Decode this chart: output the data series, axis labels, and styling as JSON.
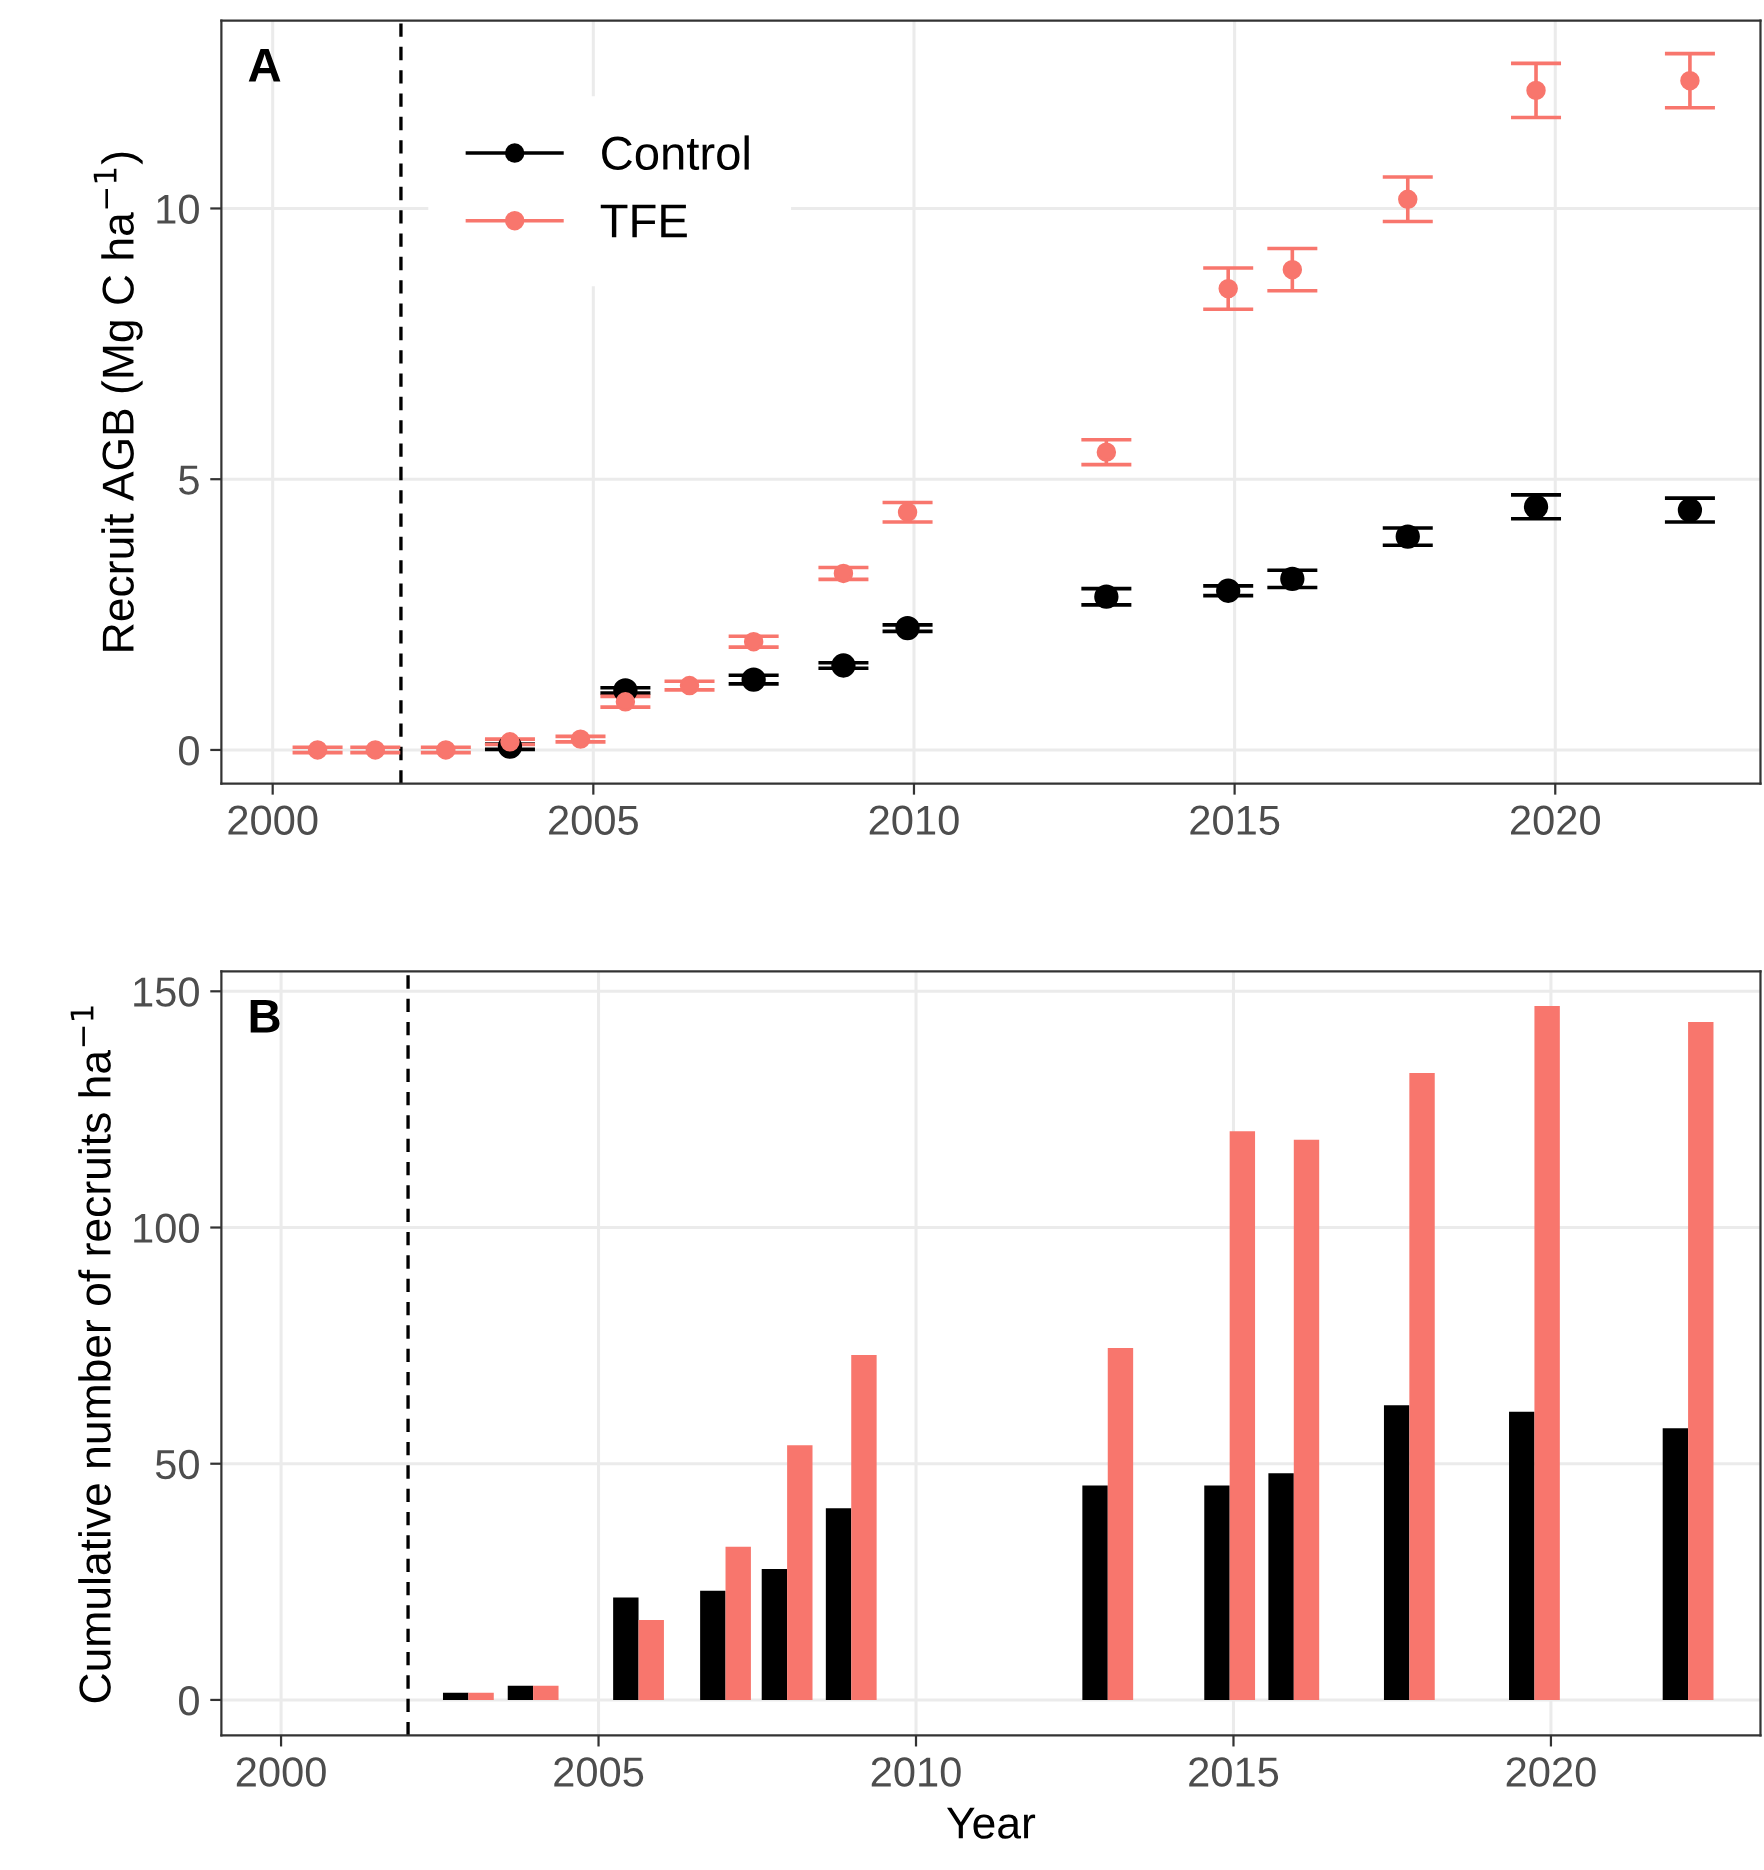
{
  "chart_data": [
    {
      "type": "scatter",
      "title": "A",
      "ylabel": "Recruit AGB (Mg C ha$^{−1}$)",
      "xlim": [
        1999.2,
        2023.2
      ],
      "xticks": [
        2000,
        2005,
        2010,
        2015,
        2020
      ],
      "ylim": [
        -0.62,
        13.47
      ],
      "yticks": [
        0,
        5,
        10
      ],
      "grid": true,
      "legend": "top left",
      "marker": "circle",
      "ref_lines": [
        {
          "axis": "x",
          "value": 2002,
          "line_style": "dashed",
          "color": "#000000"
        }
      ],
      "series": [
        {
          "name": "Control",
          "color": "#000000",
          "x": [
            2003.7,
            2005.5,
            2007.5,
            2008.9,
            2009.9,
            2013.0,
            2014.9,
            2015.9,
            2017.7,
            2019.7,
            2022.1
          ],
          "values": [
            0.06,
            1.1,
            1.3,
            1.56,
            2.25,
            2.83,
            2.94,
            3.16,
            3.94,
            4.49,
            4.43
          ],
          "errors": [
            0.05,
            0.05,
            0.08,
            0.05,
            0.06,
            0.15,
            0.09,
            0.16,
            0.16,
            0.22,
            0.22
          ]
        },
        {
          "name": "TFE",
          "color": "#f8766d",
          "x": [
            2000.7,
            2001.6,
            2002.7,
            2003.7,
            2004.8,
            2005.5,
            2006.5,
            2007.5,
            2008.9,
            2009.9,
            2013.0,
            2014.9,
            2015.9,
            2017.7,
            2019.7,
            2022.1
          ],
          "values": [
            0,
            0,
            0,
            0.15,
            0.2,
            0.89,
            1.19,
            2.0,
            3.26,
            4.39,
            5.5,
            8.52,
            8.87,
            10.17,
            12.18,
            12.36
          ],
          "errors": [
            0.05,
            0.05,
            0.05,
            0.05,
            0.05,
            0.1,
            0.08,
            0.1,
            0.11,
            0.18,
            0.23,
            0.38,
            0.39,
            0.41,
            0.5,
            0.5
          ]
        }
      ]
    },
    {
      "type": "bar",
      "title": "B",
      "xlabel": "Year",
      "ylabel": "Cumulative number of recruits ha$^{−1}$",
      "xlim": [
        1999.06,
        2023.3
      ],
      "xticks": [
        2000,
        2005,
        2010,
        2015,
        2020
      ],
      "ylim": [
        -7.5,
        154.2
      ],
      "yticks": [
        0,
        50,
        100,
        150
      ],
      "grid": true,
      "ref_lines": [
        {
          "axis": "x",
          "value": 2002,
          "line_style": "dashed",
          "color": "#000000"
        }
      ],
      "series": [
        {
          "color": "#000000",
          "x": [
            2002.75,
            2003.77,
            2005.43,
            2006.8,
            2007.77,
            2008.78,
            2012.82,
            2014.74,
            2015.75,
            2017.57,
            2019.54,
            2021.96
          ],
          "values": [
            1.5,
            3,
            21.7,
            23.1,
            27.7,
            40.6,
            45.4,
            45.4,
            48,
            62.4,
            61,
            57.5
          ]
        },
        {
          "color": "#f8766d",
          "x": [
            2003.15,
            2004.17,
            2005.83,
            2007.2,
            2008.17,
            2009.18,
            2013.22,
            2015.14,
            2016.15,
            2017.97,
            2019.94,
            2022.36
          ],
          "values": [
            1.5,
            3,
            16.9,
            32.4,
            53.9,
            73,
            74.5,
            120.4,
            118.6,
            132.7,
            146.9,
            143.5
          ]
        }
      ]
    }
  ]
}
